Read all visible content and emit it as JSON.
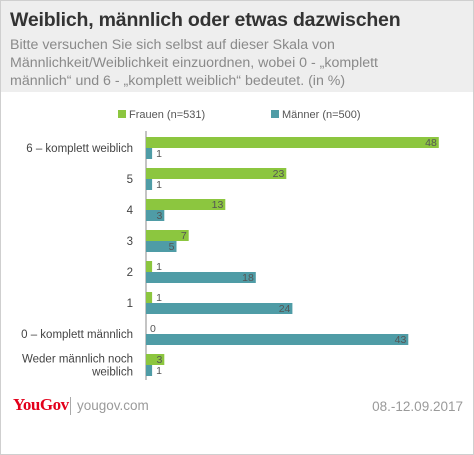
{
  "title": "Weiblich, männlich oder etwas dazwischen",
  "subtitle_lines": [
    "Bitte versuchen Sie sich selbst auf dieser Skala von",
    "Männlichkeit/Weiblichkeit einzuordnen, wobei 0 - „komplett",
    "männlich“ und 6 - „komplett weiblich“ bedeutet. (in %)"
  ],
  "footer": {
    "logo": "YouGov",
    "site": "yougov.com",
    "date": "08.-12.09.2017"
  },
  "colors": {
    "frauen": "#8cc63f",
    "maenner": "#4f9ca6"
  },
  "chart_data": {
    "type": "bar",
    "orientation": "horizontal",
    "categories": [
      [
        "6 – komplett weiblich"
      ],
      [
        "5"
      ],
      [
        "4"
      ],
      [
        "3"
      ],
      [
        "2"
      ],
      [
        "1"
      ],
      [
        "0 – komplett männlich"
      ],
      [
        "Weder männlich noch",
        "weiblich"
      ]
    ],
    "series": [
      {
        "name": "Frauen (n=531)",
        "values": [
          48,
          23,
          13,
          7,
          1,
          1,
          0,
          3
        ]
      },
      {
        "name": "Männer (n=500)",
        "values": [
          1,
          1,
          3,
          5,
          18,
          24,
          43,
          1
        ]
      }
    ],
    "legend_position": "top",
    "grid": false
  }
}
